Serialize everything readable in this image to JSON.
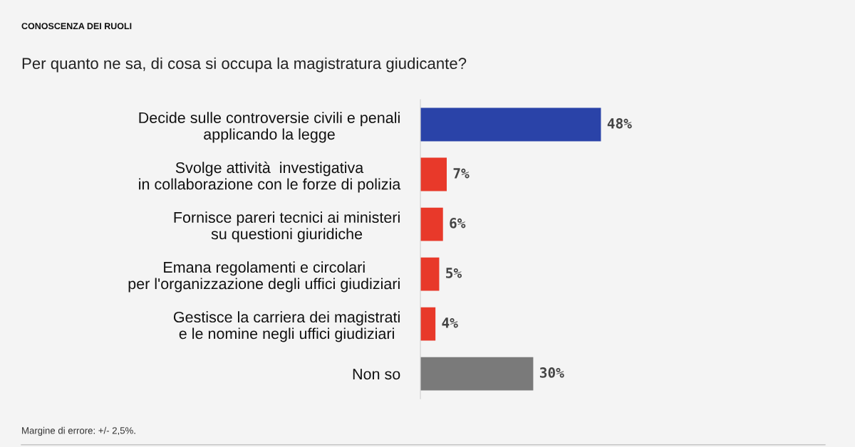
{
  "chart_data": {
    "type": "bar",
    "orientation": "horizontal",
    "title": "CONOSCENZA DEI RUOLI",
    "subtitle": "Per quanto ne sa, di cosa si occupa la magistratura giudicante?",
    "categories": [
      "Decide sulle controversie civili e penali\napplicando la legge",
      "Svolge attività  investigativa\nin collaborazione con le forze di polizia",
      "Fornisce pareri tecnici ai ministeri\nsu questioni giuridiche",
      "Emana regolamenti e circolari\nper l'organizzazione degli uffici giudiziari",
      "Gestisce la carriera dei magistrati\ne le nomine negli uffici giudiziari",
      "Non so"
    ],
    "values": [
      48,
      7,
      6,
      5,
      4,
      30
    ],
    "value_labels": [
      "48%",
      "7%",
      "6%",
      "5%",
      "4%",
      "30%"
    ],
    "colors": [
      "#2a43a8",
      "#e8392a",
      "#e8392a",
      "#e8392a",
      "#e8392a",
      "#7a7a7a"
    ],
    "annotations": [
      "Margine di errore: +/- 2,5%."
    ],
    "grid": false,
    "legend": false
  }
}
